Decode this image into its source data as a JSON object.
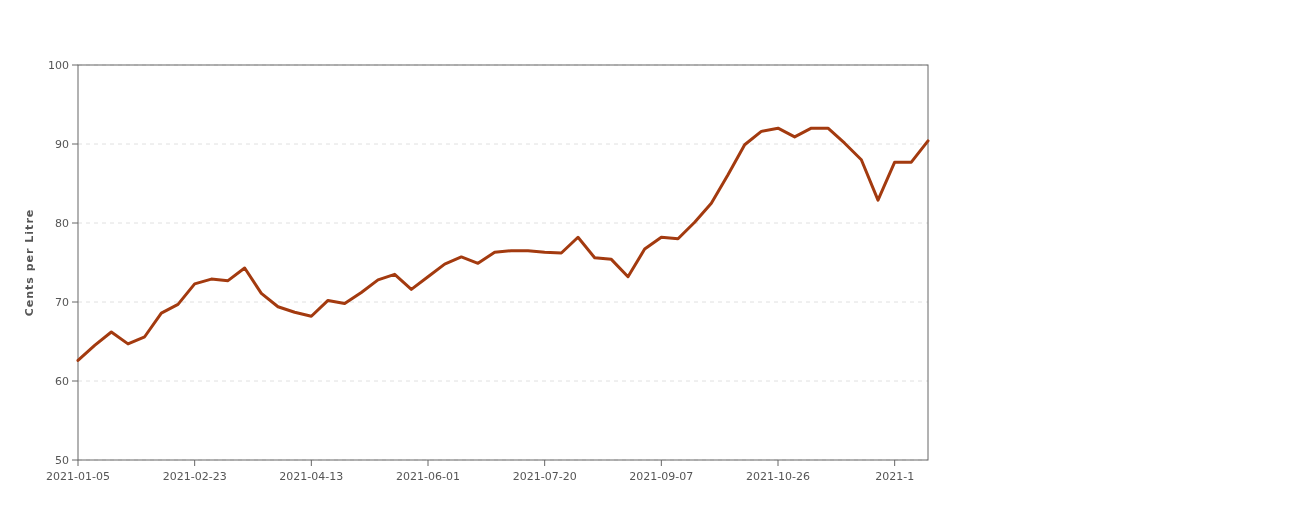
{
  "chart_data": {
    "type": "line",
    "ylabel": "Cents per Litre",
    "x": [
      "2021-01-05",
      "2021-01-12",
      "2021-01-19",
      "2021-01-26",
      "2021-02-02",
      "2021-02-09",
      "2021-02-16",
      "2021-02-23",
      "2021-03-02",
      "2021-03-09",
      "2021-03-16",
      "2021-03-23",
      "2021-03-30",
      "2021-04-06",
      "2021-04-13",
      "2021-04-20",
      "2021-04-27",
      "2021-05-04",
      "2021-05-11",
      "2021-05-18",
      "2021-05-25",
      "2021-06-01",
      "2021-06-08",
      "2021-06-15",
      "2021-06-22",
      "2021-06-29",
      "2021-07-06",
      "2021-07-13",
      "2021-07-20",
      "2021-07-27",
      "2021-08-03",
      "2021-08-10",
      "2021-08-17",
      "2021-08-24",
      "2021-08-31",
      "2021-09-07",
      "2021-09-14",
      "2021-09-21",
      "2021-09-28",
      "2021-10-05",
      "2021-10-12",
      "2021-10-19",
      "2021-10-26",
      "2021-11-02",
      "2021-11-09",
      "2021-11-16",
      "2021-11-23",
      "2021-11-30",
      "2021-12-07",
      "2021-12-14",
      "2021-12-21",
      "2021-12-28"
    ],
    "series": [
      {
        "color": "#a33a0f",
        "values": [
          62.6,
          64.5,
          66.2,
          64.7,
          65.6,
          68.6,
          69.7,
          72.3,
          72.9,
          72.7,
          74.3,
          71.1,
          69.4,
          68.7,
          68.2,
          70.2,
          69.8,
          71.2,
          72.8,
          73.5,
          71.6,
          73.2,
          74.8,
          75.7,
          74.9,
          76.3,
          76.5,
          76.5,
          76.3,
          76.2,
          78.2,
          75.6,
          75.4,
          73.2,
          76.7,
          78.2,
          78.0,
          80.1,
          82.5,
          86.1,
          89.9,
          91.6,
          92.0,
          90.9,
          92.0,
          92.0,
          90.1,
          88.0,
          82.9,
          87.7,
          87.7,
          90.4
        ]
      }
    ],
    "xlim": [
      "2021-01-05",
      "2021-12-28"
    ],
    "xticks": [
      "2021-01-05",
      "2021-02-23",
      "2021-04-13",
      "2021-06-01",
      "2021-07-20",
      "2021-09-07",
      "2021-10-26",
      {
        "value": "2021-12-14",
        "label": "2021-1"
      }
    ],
    "ylim": [
      50,
      100
    ],
    "yticks": [
      50,
      60,
      70,
      80,
      90,
      100
    ],
    "grid": "y",
    "marker": "none",
    "line_style": "solid"
  }
}
